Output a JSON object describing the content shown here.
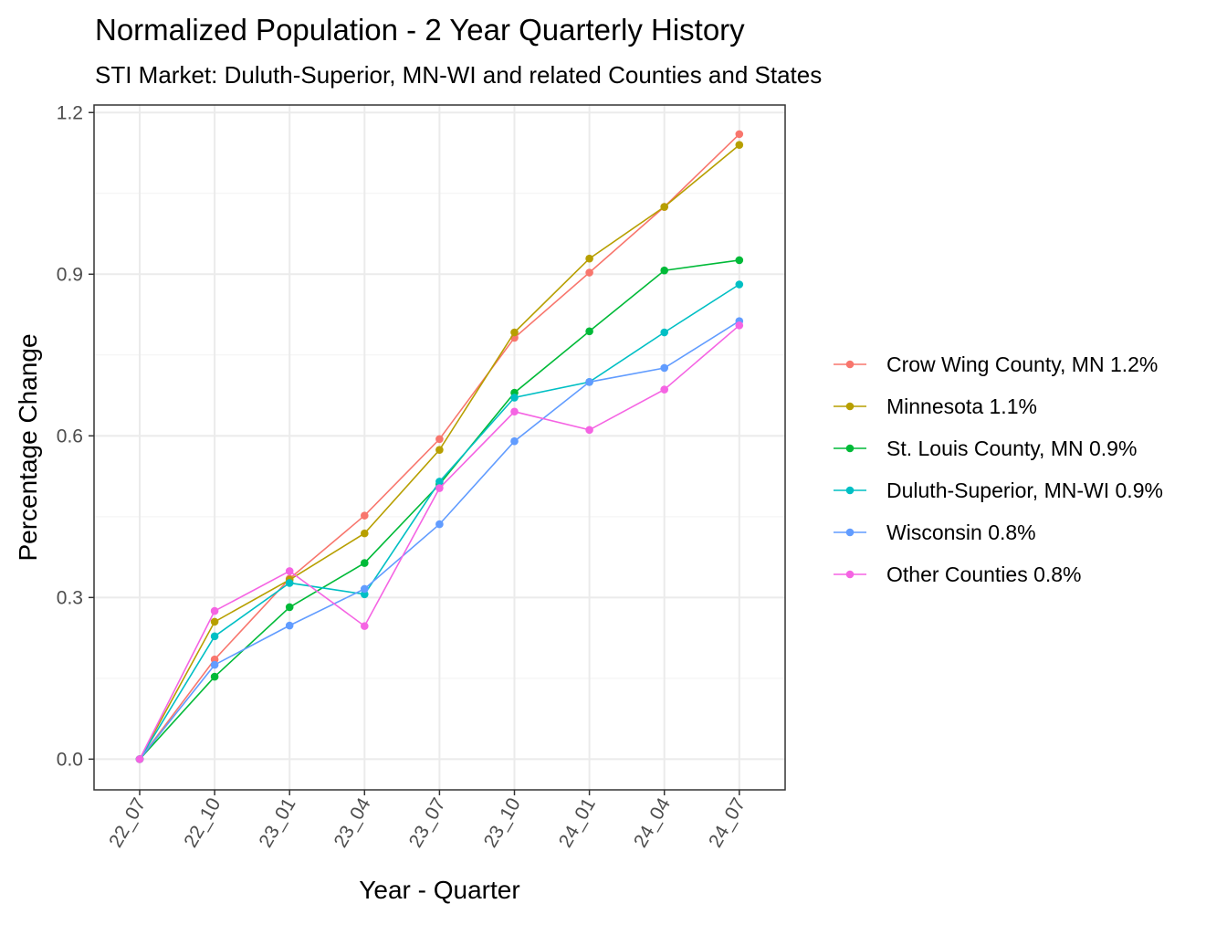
{
  "chart_data": {
    "type": "line",
    "title": "Normalized Population - 2 Year Quarterly History",
    "subtitle": "STI Market: Duluth-Superior, MN-WI and related Counties and States",
    "xlabel": "Year - Quarter",
    "ylabel": "Percentage Change",
    "categories": [
      "22_07",
      "22_10",
      "23_01",
      "23_04",
      "23_07",
      "23_10",
      "24_01",
      "24_04",
      "24_07"
    ],
    "ylim": [
      -0.057,
      1.214
    ],
    "yticks": [
      "0.0",
      "0.3",
      "0.6",
      "0.9",
      "1.2"
    ],
    "ytick_values": [
      0.0,
      0.3,
      0.6,
      0.9,
      1.2
    ],
    "grid": true,
    "legend_position": "right",
    "series": [
      {
        "name": "Crow Wing County, MN 1.2%",
        "color": "#F8766D",
        "values": [
          0.0,
          0.185,
          0.335,
          0.452,
          0.594,
          0.782,
          0.903,
          1.025,
          1.16
        ]
      },
      {
        "name": "Minnesota 1.1%",
        "color": "#B79F00",
        "values": [
          0.0,
          0.255,
          0.333,
          0.419,
          0.574,
          0.792,
          0.929,
          1.025,
          1.14
        ]
      },
      {
        "name": "St. Louis County, MN 0.9%",
        "color": "#00BA38",
        "values": [
          0.0,
          0.153,
          0.282,
          0.364,
          0.51,
          0.68,
          0.794,
          0.907,
          0.926
        ]
      },
      {
        "name": "Duluth-Superior, MN-WI 0.9%",
        "color": "#00BFC4",
        "values": [
          0.0,
          0.228,
          0.327,
          0.306,
          0.515,
          0.671,
          0.7,
          0.792,
          0.881
        ]
      },
      {
        "name": "Wisconsin 0.8%",
        "color": "#619CFF",
        "values": [
          0.0,
          0.175,
          0.248,
          0.316,
          0.436,
          0.59,
          0.7,
          0.726,
          0.813
        ]
      },
      {
        "name": "Other Counties 0.8%",
        "color": "#F564E3",
        "values": [
          0.0,
          0.275,
          0.349,
          0.247,
          0.503,
          0.645,
          0.611,
          0.686,
          0.805
        ]
      }
    ]
  }
}
